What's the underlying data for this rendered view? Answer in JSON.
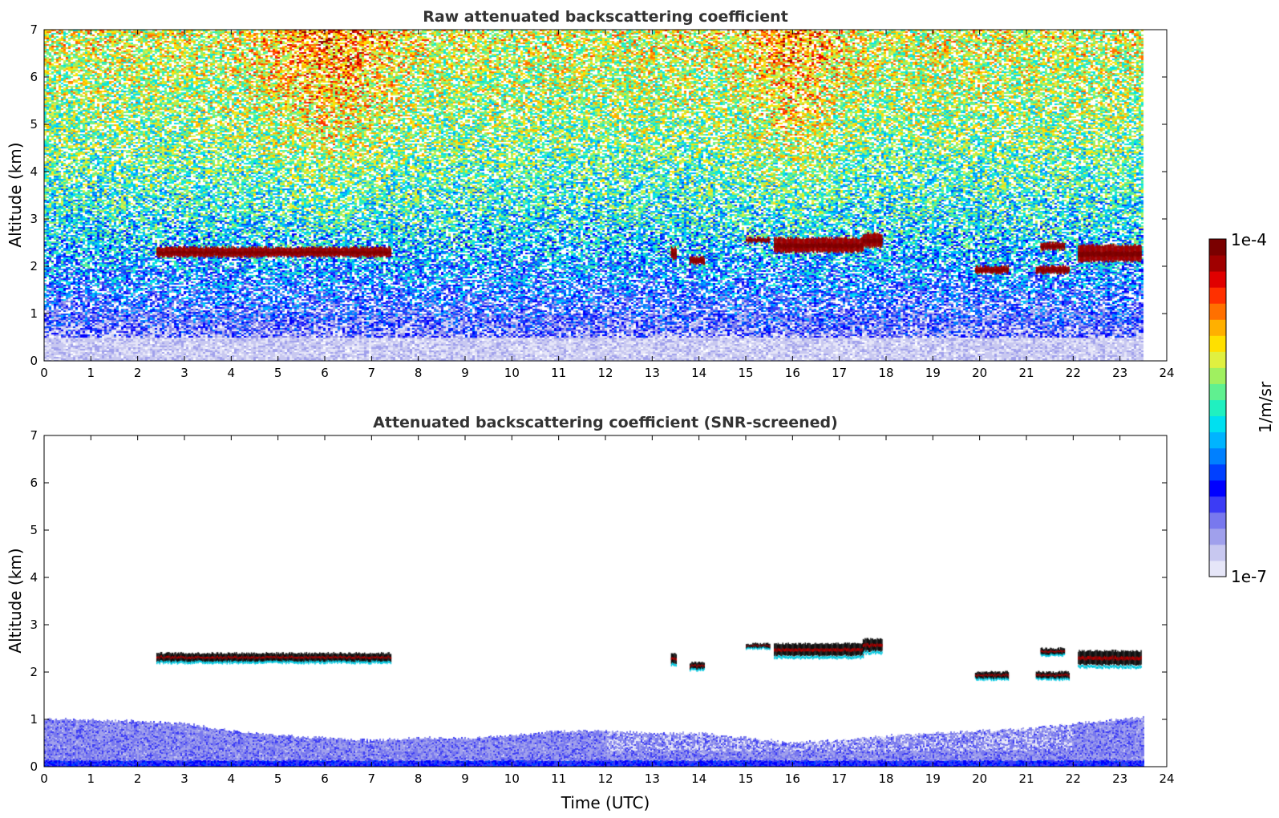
{
  "chart_data": [
    {
      "type": "heatmap",
      "title": "Raw attenuated backscattering coefficient",
      "xlabel": "",
      "ylabel": "Altitude (km)",
      "xlim": [
        0,
        24
      ],
      "ylim": [
        0,
        7
      ],
      "x_ticks": [
        "0",
        "1",
        "2",
        "3",
        "4",
        "5",
        "6",
        "7",
        "8",
        "9",
        "10",
        "11",
        "12",
        "13",
        "14",
        "15",
        "16",
        "17",
        "18",
        "19",
        "20",
        "21",
        "22",
        "23",
        "24"
      ],
      "y_ticks": [
        "0",
        "1",
        "2",
        "3",
        "4",
        "5",
        "6",
        "7"
      ],
      "data_extent_hours": [
        0,
        23.5
      ],
      "background_noise_profile": [
        {
          "altitude_km": 0.0,
          "log10_value": -6.85
        },
        {
          "altitude_km": 0.5,
          "log10_value": -6.6
        },
        {
          "altitude_km": 1.0,
          "log10_value": -6.3
        },
        {
          "altitude_km": 2.0,
          "log10_value": -5.9
        },
        {
          "altitude_km": 3.0,
          "log10_value": -5.6
        },
        {
          "altitude_km": 4.5,
          "log10_value": -5.35
        },
        {
          "altitude_km": 6.0,
          "log10_value": -5.15
        },
        {
          "altitude_km": 7.0,
          "log10_value": -5.05
        }
      ],
      "cloud_layers": [
        {
          "start": 2.4,
          "end": 7.4,
          "base_km": 2.2,
          "top_km": 2.4
        },
        {
          "start": 13.4,
          "end": 13.5,
          "base_km": 2.15,
          "top_km": 2.4
        },
        {
          "start": 13.8,
          "end": 14.1,
          "base_km": 2.05,
          "top_km": 2.2
        },
        {
          "start": 15.0,
          "end": 15.5,
          "base_km": 2.5,
          "top_km": 2.6
        },
        {
          "start": 15.6,
          "end": 17.5,
          "base_km": 2.3,
          "top_km": 2.6
        },
        {
          "start": 17.5,
          "end": 17.9,
          "base_km": 2.4,
          "top_km": 2.7
        },
        {
          "start": 19.9,
          "end": 20.6,
          "base_km": 1.85,
          "top_km": 2.0
        },
        {
          "start": 21.2,
          "end": 21.9,
          "base_km": 1.85,
          "top_km": 2.0
        },
        {
          "start": 21.3,
          "end": 21.8,
          "base_km": 2.35,
          "top_km": 2.5
        },
        {
          "start": 22.1,
          "end": 23.45,
          "base_km": 2.1,
          "top_km": 2.45
        }
      ]
    },
    {
      "type": "heatmap",
      "title": "Attenuated backscattering coefficient (SNR-screened)",
      "xlabel": "Time (UTC)",
      "ylabel": "Altitude (km)",
      "xlim": [
        0,
        24
      ],
      "ylim": [
        0,
        7
      ],
      "x_ticks": [
        "0",
        "1",
        "2",
        "3",
        "4",
        "5",
        "6",
        "7",
        "8",
        "9",
        "10",
        "11",
        "12",
        "13",
        "14",
        "15",
        "16",
        "17",
        "18",
        "19",
        "20",
        "21",
        "22",
        "23",
        "24"
      ],
      "y_ticks": [
        "0",
        "1",
        "2",
        "3",
        "4",
        "5",
        "6",
        "7"
      ],
      "boundary_layer_top_km": [
        {
          "time": 0,
          "top": 1.0
        },
        {
          "time": 2,
          "top": 0.95
        },
        {
          "time": 3,
          "top": 0.9
        },
        {
          "time": 4,
          "top": 0.75
        },
        {
          "time": 5,
          "top": 0.65
        },
        {
          "time": 6,
          "top": 0.6
        },
        {
          "time": 7,
          "top": 0.55
        },
        {
          "time": 8,
          "top": 0.6
        },
        {
          "time": 9,
          "top": 0.6
        },
        {
          "time": 10,
          "top": 0.65
        },
        {
          "time": 11,
          "top": 0.75
        },
        {
          "time": 12,
          "top": 0.75
        },
        {
          "time": 13,
          "top": 0.7
        },
        {
          "time": 14,
          "top": 0.7
        },
        {
          "time": 15,
          "top": 0.6
        },
        {
          "time": 16,
          "top": 0.5
        },
        {
          "time": 17,
          "top": 0.55
        },
        {
          "time": 18,
          "top": 0.65
        },
        {
          "time": 19,
          "top": 0.7
        },
        {
          "time": 20,
          "top": 0.75
        },
        {
          "time": 21,
          "top": 0.8
        },
        {
          "time": 22,
          "top": 0.9
        },
        {
          "time": 23,
          "top": 1.0
        },
        {
          "time": 23.5,
          "top": 1.05
        }
      ]
    }
  ],
  "colorbar": {
    "max_label": "1e-4",
    "min_label": "1e-7",
    "unit_label": "1/m/sr",
    "colors": [
      "#e6e6f8",
      "#c8c8f0",
      "#a0a0ec",
      "#7878ee",
      "#3c3cf5",
      "#0000ff",
      "#0040ff",
      "#0080ff",
      "#00b4ff",
      "#00e0f0",
      "#20f0c0",
      "#60f090",
      "#a0f060",
      "#e0f040",
      "#ffe000",
      "#ffb000",
      "#ff7000",
      "#ff3000",
      "#e00000",
      "#a00000",
      "#7a0000"
    ]
  }
}
